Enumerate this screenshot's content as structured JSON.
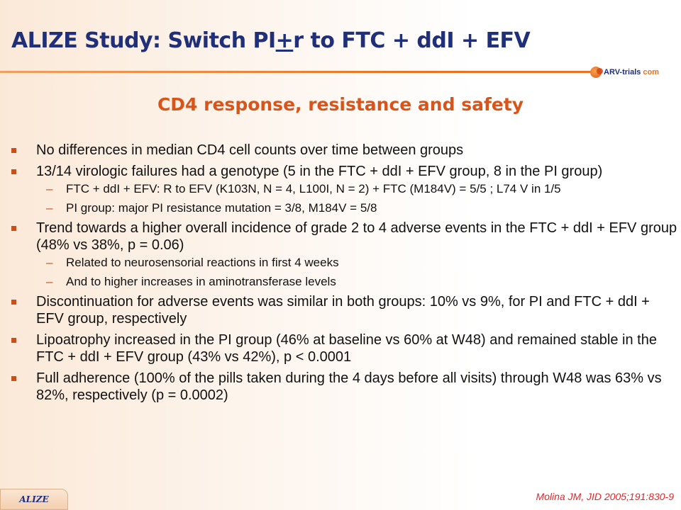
{
  "header": {
    "title_pre": "ALIZE Study: Switch PI",
    "title_pm": "+",
    "title_post": "r to FTC + ddI + EFV",
    "logo_text": "ARV-trials",
    "logo_suffix": "com",
    "logo_icon": "arv-trials-logo-icon"
  },
  "subtitle": "CD4 response, resistance and safety",
  "bullets": [
    {
      "text": "No differences in median CD4 cell counts over time between groups",
      "sub": []
    },
    {
      "text": "13/14 virologic failures had a genotype (5 in the FTC + ddI + EFV group, 8 in the PI group)",
      "sub": [
        "FTC + ddI + EFV: R to EFV (K103N, N = 4, L100I, N = 2) + FTC (M184V) = 5/5 ; L74 V in 1/5",
        "PI group: major PI resistance mutation = 3/8, M184V = 5/8"
      ]
    },
    {
      "text": "Trend towards a higher overall incidence of grade 2 to 4 adverse events in the FTC + ddI + EFV group (48% vs 38%, p = 0.06)",
      "sub": [
        "Related to neurosensorial reactions in first 4 weeks",
        "And to higher increases in aminotransferase levels"
      ]
    },
    {
      "text": "Discontinuation for adverse events was similar in both groups: 10% vs 9%, for PI and FTC + ddI + EFV group, respectively",
      "sub": []
    },
    {
      "text": "Lipoatrophy increased in the PI group (46% at baseline vs 60% at W48) and remained stable in the FTC + ddI + EFV group (43% vs 42%), p < 0.0001",
      "sub": []
    },
    {
      "text": "Full adherence (100% of the pills taken during the 4 days before all visits) through W48 was 63% vs 82%, respectively (p = 0.0002)",
      "sub": []
    }
  ],
  "footer": {
    "tag": "ALIZE",
    "reference": "Molina JM, JID 2005;191:830-9"
  },
  "colors": {
    "title": "#1f2f7a",
    "accent": "#d9541a",
    "reference": "#e6262a"
  }
}
